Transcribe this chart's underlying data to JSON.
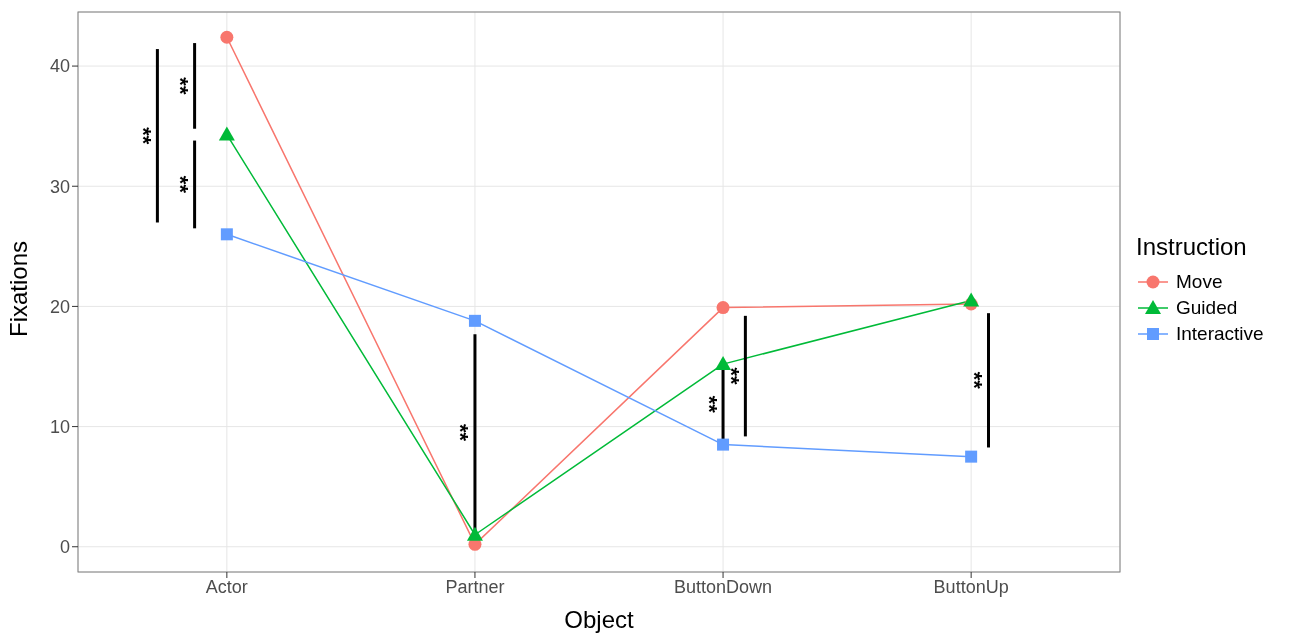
{
  "chart_data": {
    "type": "line",
    "xlabel": "Object",
    "ylabel": "Fixations",
    "legend_title": "Instruction",
    "legend": "right",
    "grid": true,
    "categories": [
      "Actor",
      "Partner",
      "ButtonDown",
      "ButtonUp"
    ],
    "ylim": [
      -2.1,
      44.5
    ],
    "yticks": [
      0,
      10,
      20,
      30,
      40
    ],
    "series": [
      {
        "name": "Move",
        "color": "#f8766d",
        "marker": "circle",
        "values": [
          42.4,
          0.2,
          19.9,
          20.2
        ]
      },
      {
        "name": "Guided",
        "color": "#00ba38",
        "marker": "triangle",
        "values": [
          34.3,
          1.0,
          15.2,
          20.5
        ]
      },
      {
        "name": "Interactive",
        "color": "#619cff",
        "marker": "square",
        "values": [
          26.0,
          18.8,
          8.5,
          7.5
        ]
      }
    ],
    "annotations": [
      "**",
      "**",
      "**",
      "**",
      "**",
      "**",
      "**"
    ]
  }
}
